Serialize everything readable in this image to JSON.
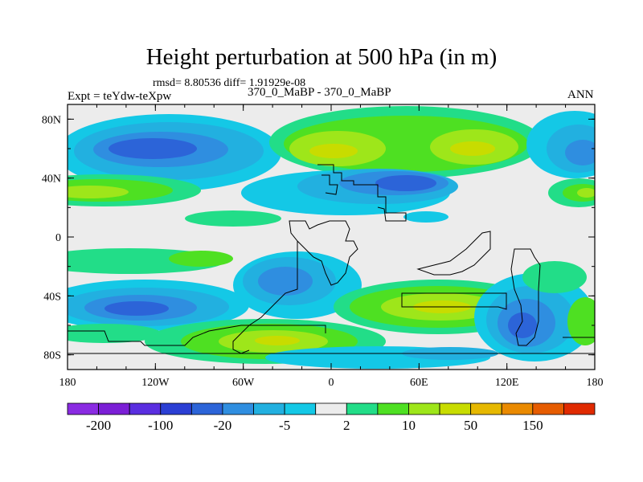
{
  "figure": {
    "title": "Height perturbation at 500 hPa (in m)",
    "subtitle": "rmsd= 8.80536 diff= 1.91929e-08",
    "left_label": "Expt = teYdw-teXpw",
    "center_label": "370_0_MaBP - 370_0_MaBP",
    "right_label": "ANN"
  },
  "axes": {
    "x_ticks": [
      "180",
      "120W",
      "60W",
      "0",
      "60E",
      "120E",
      "180"
    ],
    "y_ticks": [
      "80N",
      "40N",
      "0",
      "40S",
      "80S"
    ]
  },
  "colorbar": {
    "colors": [
      "#8a2be2",
      "#7b1fd6",
      "#5a2ee0",
      "#2b3fd4",
      "#2c64d8",
      "#2f8ee0",
      "#22b0e0",
      "#14c8e6",
      "#ececec",
      "#22dd88",
      "#4ee022",
      "#9ee61a",
      "#c8dc00",
      "#e6b800",
      "#ea8a00",
      "#e65c00",
      "#e02a00"
    ],
    "labels": [
      "-200",
      "-100",
      "-20",
      "-5",
      "2",
      "10",
      "50",
      "150"
    ]
  },
  "chart_data": {
    "type": "map",
    "title": "Height perturbation at 500 hPa (in m)",
    "variable": "500 hPa height perturbation",
    "units": "m",
    "lon_range": [
      -180,
      180
    ],
    "lat_range": [
      -90,
      90
    ],
    "x_ticks": [
      "180",
      "120W",
      "60W",
      "0",
      "60E",
      "120E",
      "180"
    ],
    "y_ticks": [
      "80N",
      "40N",
      "0",
      "40S",
      "80S"
    ],
    "contour_levels": [
      -200,
      -100,
      -20,
      -5,
      2,
      10,
      50,
      150
    ],
    "features": [
      {
        "name": "negative-anomaly-north-pacific",
        "lon": -120,
        "lat": 60,
        "level": "-20"
      },
      {
        "name": "positive-anomaly-north-atlantic",
        "lon": 10,
        "lat": 65,
        "level": "10"
      },
      {
        "name": "positive-anomaly-north-asia",
        "lon": 80,
        "lat": 65,
        "level": "10"
      },
      {
        "name": "negative-anomaly-central-asia",
        "lon": 60,
        "lat": 35,
        "level": "-20"
      },
      {
        "name": "negative-anomaly-south-pacific",
        "lon": -120,
        "lat": -45,
        "level": "-20"
      },
      {
        "name": "positive-anomaly-south-atlantic",
        "lon": -50,
        "lat": -65,
        "level": "10"
      },
      {
        "name": "positive-anomaly-indian-ocean",
        "lon": 70,
        "lat": -45,
        "level": "10"
      },
      {
        "name": "negative-anomaly-southwest-pacific",
        "lon": 135,
        "lat": -55,
        "level": "-20"
      }
    ]
  }
}
